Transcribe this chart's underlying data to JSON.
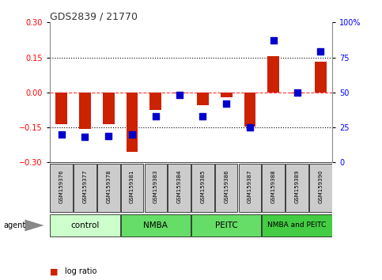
{
  "title": "GDS2839 / 21770",
  "samples": [
    "GSM159376",
    "GSM159377",
    "GSM159378",
    "GSM159381",
    "GSM159383",
    "GSM159384",
    "GSM159385",
    "GSM159386",
    "GSM159387",
    "GSM159388",
    "GSM159389",
    "GSM159390"
  ],
  "log_ratio": [
    -0.135,
    -0.155,
    -0.135,
    -0.255,
    -0.075,
    -0.005,
    -0.055,
    -0.02,
    -0.145,
    0.155,
    -0.005,
    0.13
  ],
  "percentile_rank": [
    20,
    18,
    19,
    20,
    33,
    48,
    33,
    42,
    25,
    87,
    50,
    79
  ],
  "groups": [
    {
      "label": "control",
      "start": 0,
      "end": 3,
      "color": "#ccffcc"
    },
    {
      "label": "NMBA",
      "start": 3,
      "end": 6,
      "color": "#66dd66"
    },
    {
      "label": "PEITC",
      "start": 6,
      "end": 9,
      "color": "#66dd66"
    },
    {
      "label": "NMBA and PEITC",
      "start": 9,
      "end": 12,
      "color": "#44cc44"
    }
  ],
  "ylim_left": [
    -0.3,
    0.3
  ],
  "ylim_right": [
    0,
    100
  ],
  "yticks_left": [
    -0.3,
    -0.15,
    0,
    0.15,
    0.3
  ],
  "yticks_right": [
    0,
    25,
    50,
    75,
    100
  ],
  "bar_color": "#cc2200",
  "dot_color": "#0000cc",
  "bar_width": 0.5,
  "dot_size": 28,
  "bg_color": "#ffffff",
  "sample_box_facecolor": "#cccccc",
  "legend_log_color": "#cc2200",
  "legend_pct_color": "#0000cc"
}
